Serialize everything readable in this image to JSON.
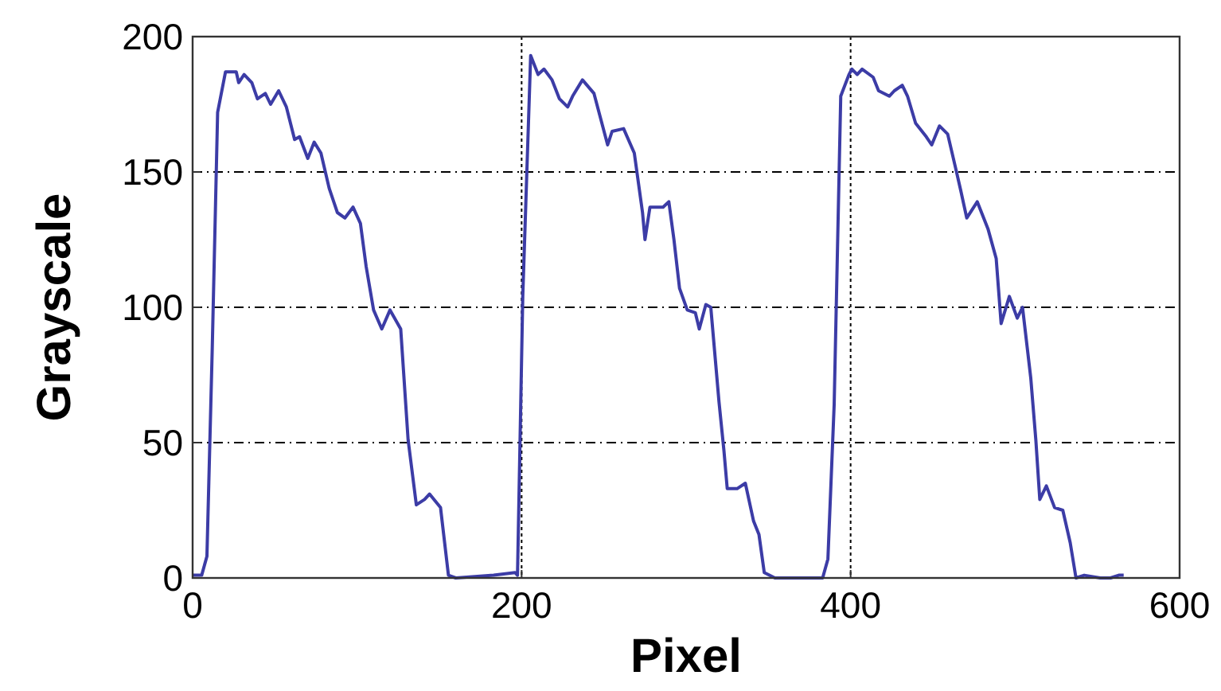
{
  "chart_data": {
    "type": "line",
    "xlabel": "Pixel",
    "ylabel": "Grayscale",
    "xlim": [
      0,
      600
    ],
    "xticks": [
      0,
      200,
      400,
      600
    ],
    "ylim": [
      0,
      200
    ],
    "yticks": [
      0,
      50,
      100,
      150,
      200
    ],
    "grid": true,
    "series": [
      {
        "color": "#3c3ca6",
        "x": [
          0,
          5.5,
          8.7,
          11.9,
          15.2,
          20,
          26.5,
          28,
          31.3,
          36,
          39.4,
          44.2,
          47.4,
          52.3,
          57,
          62,
          65,
          70,
          73.9,
          78,
          83,
          88,
          92.6,
          97.5,
          102,
          105.5,
          110,
          115,
          120,
          126.5,
          131,
          136,
          141,
          144,
          150.7,
          155.5,
          160,
          183,
          196,
          197.5,
          200.7,
          205.5,
          210,
          213.6,
          218.5,
          223,
          228,
          231,
          237,
          244,
          252.3,
          255,
          262,
          268.5,
          273.5,
          275,
          278,
          286,
          289.5,
          292.6,
          296,
          300.7,
          305.6,
          308,
          312,
          315,
          320,
          323,
          325,
          331,
          336,
          341,
          344.3,
          347.5,
          354,
          373.3,
          383,
          386.2,
          390,
          394,
          399,
          400.8,
          404,
          407,
          413.7,
          417,
          423.5,
          426.6,
          431.4,
          434.6,
          439.5,
          446,
          449.3,
          454,
          459,
          464,
          467,
          470.6,
          477,
          483.5,
          488.5,
          491.5,
          496.5,
          501.3,
          504.5,
          509.5,
          512.6,
          515,
          519,
          524,
          529,
          533.5,
          537,
          542,
          551.8,
          558,
          563,
          566
        ],
        "values": [
          1,
          1,
          8,
          84,
          172,
          187,
          187,
          183,
          186,
          183,
          177,
          179,
          175,
          180,
          174,
          162,
          163,
          155,
          161,
          157,
          144,
          135,
          133,
          137,
          131,
          115,
          99,
          92,
          99,
          92,
          51,
          27,
          29,
          31,
          26,
          1,
          0,
          1,
          2,
          1,
          104,
          193,
          186,
          188,
          184,
          177,
          174,
          178,
          184,
          179,
          160,
          165,
          166,
          157,
          135,
          125,
          137,
          137,
          139,
          125,
          107,
          99,
          98,
          92,
          101,
          100,
          65,
          47,
          33,
          33,
          35,
          21,
          16,
          2,
          0,
          0,
          0,
          7,
          64,
          178,
          186,
          188,
          186,
          188,
          185,
          180,
          178,
          180,
          182,
          178,
          168,
          163,
          160,
          167,
          164,
          151,
          143,
          133,
          139,
          129,
          118,
          94,
          104,
          96,
          100,
          74,
          51,
          29,
          34,
          26,
          25,
          13,
          0,
          1,
          0,
          0,
          1,
          1
        ]
      }
    ]
  }
}
